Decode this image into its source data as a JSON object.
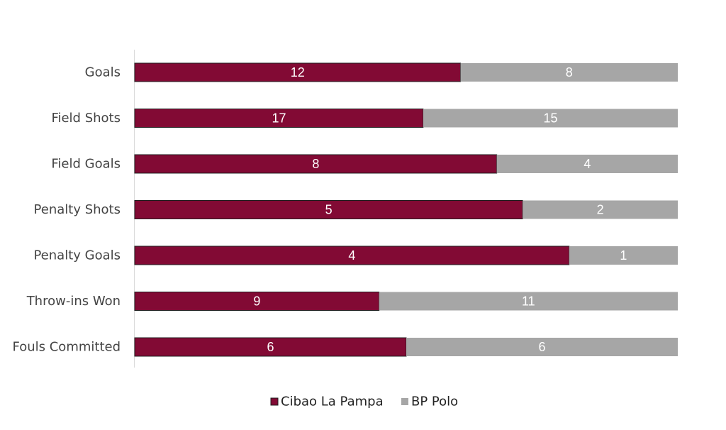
{
  "chart_data": {
    "type": "bar",
    "stacked": true,
    "normalized": true,
    "orientation": "horizontal",
    "categories": [
      "Goals",
      "Field Shots",
      "Field Goals",
      "Penalty Shots",
      "Penalty Goals",
      "Throw-ins Won",
      "Fouls Committed"
    ],
    "series": [
      {
        "name": "Cibao La Pampa",
        "color": "#820a34",
        "values": [
          12,
          17,
          8,
          5,
          4,
          9,
          6
        ]
      },
      {
        "name": "BP Polo",
        "color": "#a6a6a6",
        "values": [
          8,
          15,
          4,
          2,
          1,
          11,
          6
        ]
      }
    ],
    "legend": "bottom",
    "grid": false
  }
}
